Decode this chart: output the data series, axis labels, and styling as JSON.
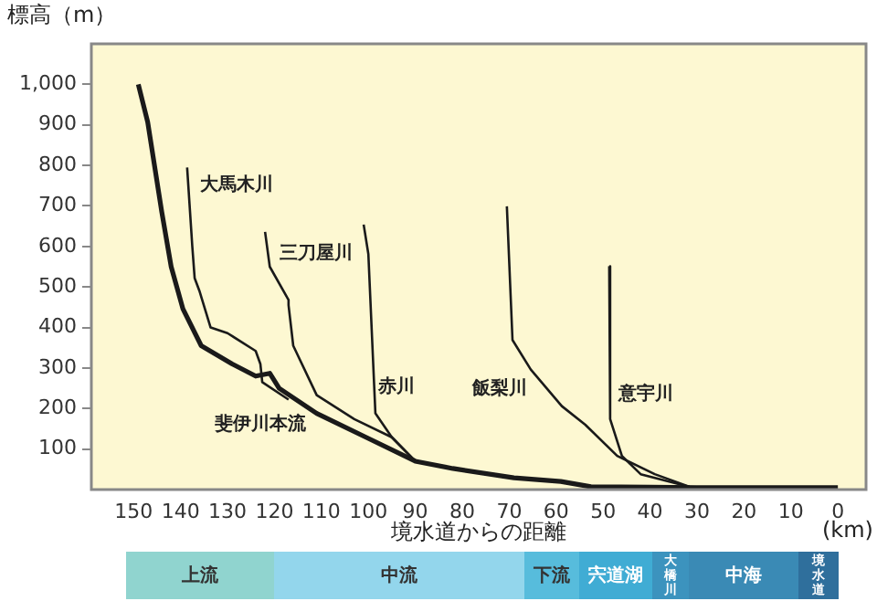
{
  "chart_data": {
    "type": "line",
    "xlabel": "境水道からの距離",
    "ylabel": "標高（m）",
    "xlim": [
      159,
      -6
    ],
    "xticks": [
      150,
      140,
      130,
      120,
      110,
      100,
      90,
      80,
      70,
      60,
      50,
      40,
      30,
      20,
      10,
      0
    ],
    "ylim": [
      0,
      1100
    ],
    "yticks": [
      100,
      200,
      300,
      400,
      500,
      600,
      700,
      800,
      900,
      {
        "value": 1000,
        "label": "1,000"
      }
    ],
    "grid": false,
    "legend": false,
    "marker": "none",
    "line_style": "solid",
    "series": [
      {
        "name": "斐伊川本流",
        "color": "#1a1a1a",
        "x": [
          149,
          147,
          144,
          142,
          139.5,
          135.6,
          129,
          124,
          121,
          119,
          111,
          100.5,
          90,
          82,
          69,
          59,
          52.6,
          40,
          30,
          20,
          10,
          0
        ],
        "values": [
          1000,
          907,
          685,
          550,
          446,
          355,
          310,
          280,
          287,
          250,
          188,
          129,
          70,
          52,
          29,
          20,
          7,
          6,
          5,
          5,
          5,
          5
        ]
      },
      {
        "name": "大馬木川",
        "color": "#1a1a1a",
        "x": [
          138.6,
          137.5,
          137,
          136,
          133.6,
          130,
          124,
          123,
          122.6,
          117
        ],
        "values": [
          795,
          600,
          522,
          491,
          400,
          386,
          342,
          310,
          265,
          222
        ]
      },
      {
        "name": "三刀屋川",
        "color": "#1a1a1a",
        "x": [
          122,
          121,
          117,
          117,
          116,
          111,
          103,
          95,
          90
        ],
        "values": [
          636,
          550,
          468,
          455,
          355,
          233,
          174,
          129,
          70
        ]
      },
      {
        "name": "赤川",
        "color": "#1a1a1a",
        "x": [
          101,
          100,
          98.5,
          95,
          90
        ],
        "values": [
          654,
          581,
          188,
          129,
          70
        ]
      },
      {
        "name": "飯梨川",
        "color": "#1a1a1a",
        "x": [
          70.5,
          69.3,
          65.4,
          58.8,
          53.8,
          47,
          39,
          31.6
        ],
        "values": [
          699,
          369,
          296,
          206,
          160,
          83,
          38,
          7
        ]
      },
      {
        "name": "意宇川",
        "color": "#1a1a1a",
        "x": [
          48.7,
          48.5,
          46,
          42,
          31.6
        ],
        "values": [
          551,
          174,
          83,
          38,
          7
        ]
      }
    ],
    "annotations": [
      "(km)",
      "上流",
      "中流",
      "下流",
      "宍道湖",
      "大橋川",
      "中海",
      "境水道"
    ]
  }
}
